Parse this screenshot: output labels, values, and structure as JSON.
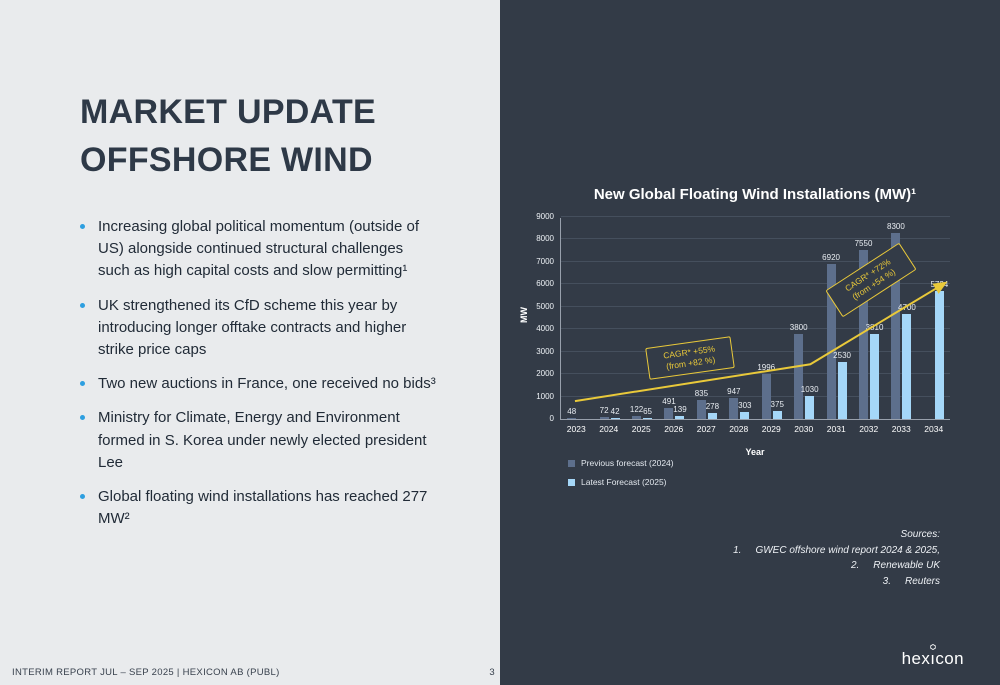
{
  "slide": {
    "title_line1": "MARKET UPDATE",
    "title_line2": "OFFSHORE WIND",
    "bullets": [
      "Increasing global political momentum (outside of US) alongside continued structural challenges such as high capital costs and slow permitting¹",
      "UK strengthened its CfD scheme this year by introducing longer offtake contracts and higher strike price caps",
      "Two new auctions in France, one received no bids³",
      "Ministry for Climate, Energy and Environment formed in S. Korea under newly elected president Lee",
      "Global floating wind installations has reached 277 MW²"
    ],
    "footer": {
      "report": "INTERIM REPORT JUL – SEP 2025 | HEXICON AB (PUBL)",
      "page": "3"
    },
    "logo": "hexicon"
  },
  "chart_data": {
    "type": "bar",
    "title": "New Global Floating Wind Installations (MW)¹",
    "xlabel": "Year",
    "ylabel": "MW",
    "ylim": [
      0,
      9000
    ],
    "ytick_step": 1000,
    "grid": true,
    "legend_position": "bottom-left",
    "categories": [
      "2023",
      "2024",
      "2025",
      "2026",
      "2027",
      "2028",
      "2029",
      "2030",
      "2031",
      "2032",
      "2033",
      "2034"
    ],
    "series": [
      {
        "name": "Previous forecast (2024)",
        "color": "#5d6f8c",
        "values": [
          48,
          72,
          122,
          491,
          835,
          947,
          1996,
          3800,
          6920,
          7550,
          8300,
          null
        ]
      },
      {
        "name": "Latest Forecast (2025)",
        "color": "#a5d7f8",
        "values": [
          null,
          42,
          65,
          139,
          278,
          303,
          375,
          1030,
          2530,
          3810,
          4700,
          5724
        ]
      }
    ],
    "annotations": [
      {
        "line1": "CAGR* +55%",
        "line2": "(from +82 %)"
      },
      {
        "line1": "CAGR* +72%",
        "line2": "(from +54 %)"
      }
    ]
  },
  "sources": {
    "label": "Sources:",
    "items": [
      {
        "num": "1.",
        "text": "GWEC offshore wind report 2024 & 2025,"
      },
      {
        "num": "2.",
        "text": "Renewable UK"
      },
      {
        "num": "3.",
        "text": "Reuters"
      }
    ]
  },
  "colors": {
    "left-bg": "#e9ebed",
    "right-bg": "#333b47",
    "title": "#2e3947",
    "body-text": "#212b37",
    "bullet": "#2d9fe0",
    "annotation-yellow": "#e9c93a",
    "gridline": "#454f5d",
    "axis": "#98a0ac",
    "chart-text": "#ffffff"
  }
}
